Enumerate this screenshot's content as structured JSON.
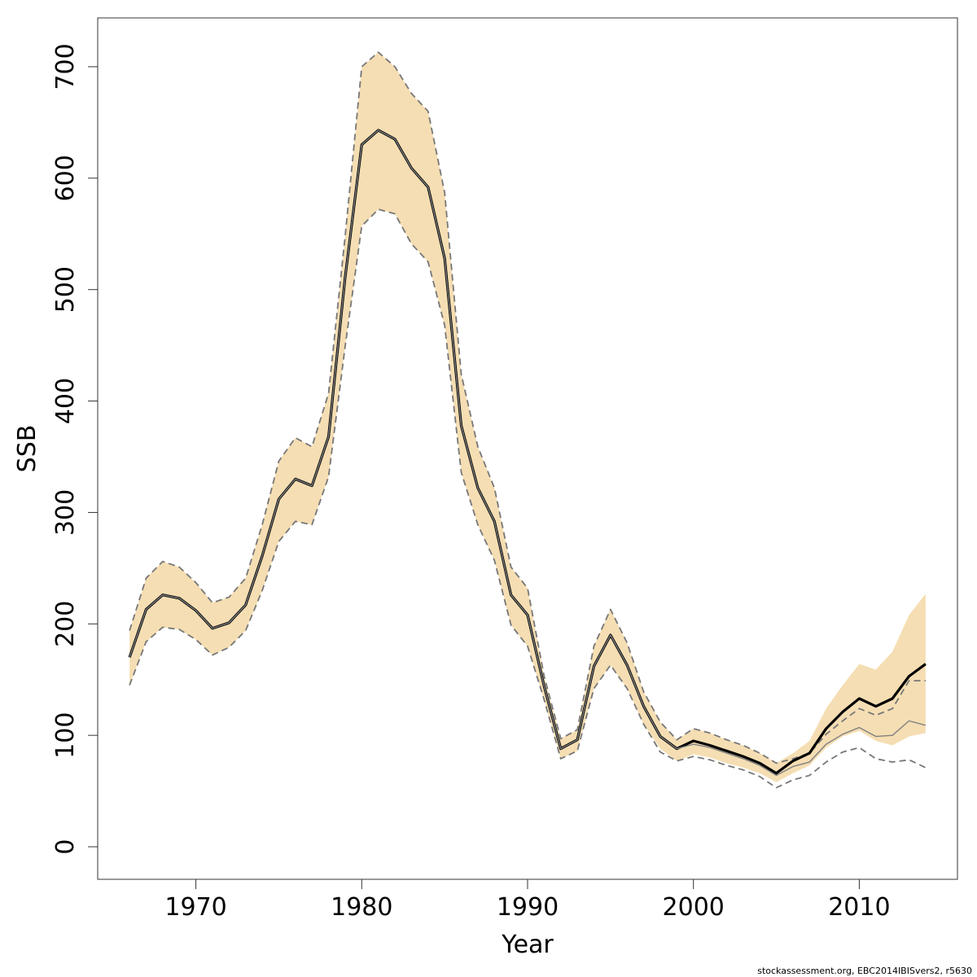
{
  "chart_data": {
    "type": "line",
    "x_label": "Year",
    "y_label": "SSB",
    "footer": "stockassessment.org, EBC2014IBISvers2, r5630",
    "x": [
      1966,
      1967,
      1968,
      1969,
      1970,
      1971,
      1972,
      1973,
      1974,
      1975,
      1976,
      1977,
      1978,
      1979,
      1980,
      1981,
      1982,
      1983,
      1984,
      1985,
      1986,
      1987,
      1988,
      1989,
      1990,
      1991,
      1992,
      1993,
      1994,
      1995,
      1996,
      1997,
      1998,
      1999,
      2000,
      2001,
      2002,
      2003,
      2004,
      2005,
      2006,
      2007,
      2008,
      2009,
      2010,
      2011,
      2012,
      2013,
      2014
    ],
    "band": {
      "color": "#f5deb3",
      "upper": [
        194,
        241,
        256,
        251,
        237,
        219,
        224,
        241,
        289,
        346,
        367,
        359,
        407,
        548,
        700,
        713,
        700,
        676,
        660,
        587,
        424,
        359,
        322,
        251,
        232,
        153,
        97,
        105,
        180,
        213,
        183,
        139,
        112,
        96,
        106,
        102,
        96,
        91,
        84,
        75,
        84,
        95,
        124,
        145,
        164,
        159,
        175,
        208,
        227
      ],
      "lower": [
        145,
        184,
        197,
        195,
        186,
        172,
        179,
        194,
        230,
        274,
        292,
        289,
        332,
        449,
        557,
        572,
        568,
        541,
        525,
        468,
        336,
        289,
        257,
        199,
        180,
        132,
        79,
        86,
        142,
        163,
        142,
        110,
        88,
        77,
        83,
        80,
        75,
        71,
        66,
        58,
        66,
        73,
        89,
        99,
        104,
        95,
        91,
        99,
        102
      ]
    },
    "series": [
      {
        "color": "#777777",
        "dashed": true,
        "width": 1.8,
        "values": [
          194,
          241,
          256,
          251,
          237,
          219,
          224,
          241,
          289,
          346,
          367,
          359,
          407,
          548,
          700,
          713,
          700,
          676,
          660,
          587,
          424,
          359,
          322,
          251,
          232,
          153,
          97,
          105,
          180,
          213,
          183,
          139,
          112,
          96,
          106,
          102,
          96,
          91,
          84,
          75,
          79,
          84,
          101,
          113,
          124,
          118,
          124,
          149,
          149
        ]
      },
      {
        "color": "#777777",
        "dashed": true,
        "width": 1.8,
        "values": [
          145,
          184,
          197,
          195,
          186,
          172,
          179,
          194,
          230,
          274,
          292,
          289,
          332,
          449,
          557,
          572,
          568,
          541,
          525,
          468,
          336,
          289,
          257,
          199,
          180,
          132,
          79,
          86,
          142,
          163,
          142,
          110,
          85,
          77,
          81,
          78,
          73,
          69,
          63,
          53,
          60,
          64,
          76,
          85,
          89,
          79,
          76,
          78,
          71
        ]
      },
      {
        "color": "#000000",
        "dashed": false,
        "width": 3.2,
        "values": [
          170,
          213,
          226,
          223,
          212,
          196,
          201,
          217,
          261,
          312,
          330,
          324,
          368,
          511,
          630,
          643,
          635,
          609,
          592,
          528,
          378,
          322,
          292,
          226,
          208,
          144,
          88,
          96,
          162,
          190,
          163,
          126,
          99,
          88,
          95,
          91,
          86,
          81,
          75,
          66,
          77,
          84,
          106,
          121,
          133,
          126,
          133,
          153,
          164
        ]
      },
      {
        "color": "#808080",
        "dashed": false,
        "width": 1.4,
        "values": [
          170,
          213,
          226,
          223,
          212,
          196,
          201,
          217,
          261,
          312,
          330,
          324,
          368,
          511,
          630,
          643,
          635,
          609,
          592,
          528,
          378,
          322,
          292,
          226,
          208,
          144,
          88,
          96,
          162,
          190,
          163,
          126,
          99,
          88,
          92,
          89,
          84,
          79,
          73,
          64,
          72,
          76,
          92,
          101,
          107,
          99,
          100,
          113,
          109
        ]
      }
    ],
    "xlim": [
      1964.08,
      2015.92
    ],
    "xticks": [
      1970,
      1980,
      1990,
      2000,
      2010
    ],
    "ylim": [
      -29.2,
      743.8
    ],
    "yticks": [
      0,
      100,
      200,
      300,
      400,
      500,
      600,
      700
    ]
  }
}
